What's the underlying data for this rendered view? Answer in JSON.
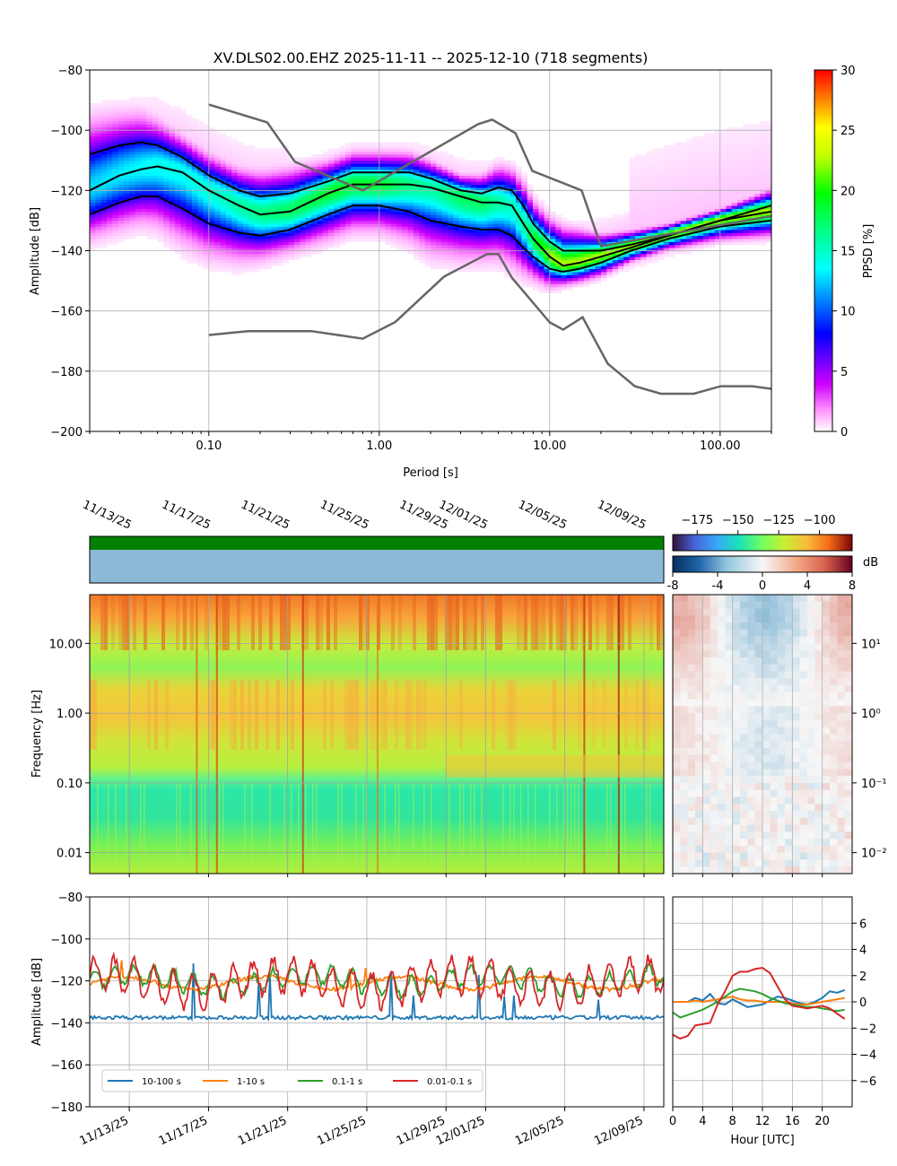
{
  "chart_data": [
    {
      "type": "heatmap",
      "panel": "ppsd",
      "title": "XV.DLS02.00.EHZ   2025-11-11 -- 2025-12-10  (718 segments)",
      "xlabel": "Period [s]",
      "ylabel": "Amplitude [dB]",
      "xscale": "log",
      "xlim": [
        0.02,
        200
      ],
      "ylim": [
        -200,
        -80
      ],
      "xticks": [
        0.1,
        1,
        10,
        100
      ],
      "xtick_labels": [
        "0.10",
        "1.00",
        "10.00",
        "100.00"
      ],
      "yticks": [
        -200,
        -180,
        -160,
        -140,
        -120,
        -100,
        -80
      ],
      "ytick_labels": [
        "−200",
        "−180",
        "−160",
        "−140",
        "−120",
        "−100",
        "−80"
      ],
      "grid": true,
      "colorbar": {
        "label": "PPSD [%]",
        "min": 0,
        "max": 30,
        "ticks": [
          "0",
          "5",
          "10",
          "15",
          "20",
          "25",
          "30"
        ]
      },
      "percentile_curves": [
        {
          "name": "upper",
          "x": [
            0.02,
            0.03,
            0.04,
            0.05,
            0.07,
            0.1,
            0.15,
            0.2,
            0.3,
            0.5,
            0.7,
            1.0,
            1.5,
            2.0,
            3.0,
            4.0,
            5.0,
            6.0,
            7.0,
            8.0,
            10.0,
            12.0,
            15.0,
            20.0,
            30.0,
            50.0,
            100.0,
            200.0
          ],
          "y": [
            -108,
            -105,
            -104,
            -105,
            -109,
            -115,
            -120,
            -122,
            -121,
            -117,
            -114,
            -114,
            -114,
            -116,
            -120,
            -121,
            -119,
            -120,
            -125,
            -131,
            -137,
            -140,
            -140,
            -140,
            -138,
            -135,
            -130,
            -125
          ]
        },
        {
          "name": "median",
          "x": [
            0.02,
            0.03,
            0.04,
            0.05,
            0.07,
            0.1,
            0.15,
            0.2,
            0.3,
            0.5,
            0.7,
            1.0,
            1.5,
            2.0,
            3.0,
            4.0,
            5.0,
            6.0,
            7.0,
            8.0,
            10.0,
            12.0,
            15.0,
            20.0,
            30.0,
            50.0,
            100.0,
            200.0
          ],
          "y": [
            -120,
            -115,
            -113,
            -112,
            -114,
            -120,
            -125,
            -128,
            -127,
            -121,
            -118,
            -118,
            -118,
            -119,
            -122,
            -124,
            -124,
            -125,
            -131,
            -136,
            -142,
            -145,
            -144,
            -142,
            -139,
            -135,
            -130,
            -127
          ]
        },
        {
          "name": "lower",
          "x": [
            0.02,
            0.03,
            0.04,
            0.05,
            0.07,
            0.1,
            0.15,
            0.2,
            0.3,
            0.5,
            0.7,
            1.0,
            1.5,
            2.0,
            3.0,
            4.0,
            5.0,
            6.0,
            7.0,
            8.0,
            10.0,
            12.0,
            15.0,
            20.0,
            30.0,
            50.0,
            100.0,
            200.0
          ],
          "y": [
            -128,
            -124,
            -122,
            -122,
            -126,
            -131,
            -134,
            -135,
            -133,
            -128,
            -125,
            -125,
            -127,
            -130,
            -132,
            -133,
            -133,
            -135,
            -139,
            -142,
            -146,
            -147,
            -146,
            -144,
            -140,
            -136,
            -132,
            -130
          ]
        }
      ],
      "noise_models": [
        {
          "name": "NHNM",
          "x": [
            0.1,
            0.22,
            0.32,
            0.8,
            3.8,
            4.6,
            6.3,
            7.9,
            15.4,
            20.0,
            354.8
          ],
          "y": [
            -91.5,
            -97.4,
            -110.5,
            -120.0,
            -98.0,
            -96.5,
            -101.0,
            -113.5,
            -120.0,
            -138.5,
            -126.0
          ]
        },
        {
          "name": "NLNM",
          "x": [
            0.1,
            0.17,
            0.4,
            0.8,
            1.24,
            2.4,
            4.3,
            5.0,
            6.0,
            10.0,
            12.0,
            15.6,
            21.9,
            31.6,
            45.0,
            70.0,
            101.0,
            154.0,
            328.0
          ],
          "y": [
            -168.0,
            -166.7,
            -166.7,
            -169.2,
            -163.7,
            -148.6,
            -141.1,
            -141.1,
            -149.0,
            -163.8,
            -166.2,
            -162.1,
            -177.5,
            -185.0,
            -187.5,
            -187.5,
            -185.0,
            -185.0,
            -187.5
          ]
        }
      ]
    },
    {
      "type": "heatmap",
      "panel": "spectrogram",
      "ylabel": "Frequency [Hz]",
      "yscale": "log",
      "ylim": [
        0.005,
        50
      ],
      "yticks": [
        0.01,
        0.1,
        1,
        10
      ],
      "ytick_labels": [
        "0.01",
        "0.10",
        "1.00",
        "10.00"
      ],
      "xlim": [
        "2025-11-11",
        "2025-12-10"
      ],
      "date_ticks": [
        "11/13/25",
        "11/17/25",
        "11/21/25",
        "11/25/25",
        "11/29/25",
        "12/01/25",
        "12/05/25",
        "12/09/25"
      ],
      "colorbar": {
        "label": "",
        "min": -190,
        "max": -80,
        "ticks": [
          "−175",
          "−150",
          "−125",
          "−100"
        ]
      }
    },
    {
      "type": "heatmap",
      "panel": "diurnal-anomaly",
      "xlim": [
        0,
        24
      ],
      "ylim": [
        0.005,
        50
      ],
      "yticks": [
        0.01,
        0.1,
        1,
        10
      ],
      "ytick_labels": [
        "10⁻²",
        "10⁻¹",
        "10⁰",
        "10¹"
      ],
      "colorbar": {
        "label": "dB",
        "min": -8,
        "max": 8,
        "ticks": [
          "-8",
          "-4",
          "0",
          "4",
          "8"
        ]
      }
    },
    {
      "type": "line",
      "panel": "band-timeseries",
      "ylabel": "Amplitude [dB]",
      "ylim": [
        -180,
        -80
      ],
      "yticks": [
        -180,
        -160,
        -140,
        -120,
        -100,
        -80
      ],
      "ytick_labels": [
        "−180",
        "−160",
        "−140",
        "−120",
        "−100",
        "−80"
      ],
      "xlim": [
        "2025-11-11",
        "2025-12-10"
      ],
      "date_ticks": [
        "11/13/25",
        "11/17/25",
        "11/21/25",
        "11/25/25",
        "11/29/25",
        "12/01/25",
        "12/05/25",
        "12/09/25"
      ],
      "legend": "lower-left",
      "series": [
        {
          "name": "10-100 s",
          "color": "#1f77b4",
          "mean": -137.5,
          "spread": 1.2
        },
        {
          "name": "1-10 s",
          "color": "#ff7f0e",
          "mean": -121,
          "spread": 3
        },
        {
          "name": "0.1-1 s",
          "color": "#2ca02c",
          "mean": -120,
          "spread": 5
        },
        {
          "name": "0.01-0.1 s",
          "color": "#d62728",
          "mean": -121,
          "spread": 8
        }
      ]
    },
    {
      "type": "line",
      "panel": "diurnal-bands",
      "xlabel": "Hour [UTC]",
      "xlim": [
        0,
        24
      ],
      "xticks": [
        0,
        4,
        8,
        12,
        16,
        20
      ],
      "xtick_labels": [
        "0",
        "4",
        "8",
        "12",
        "16",
        "20"
      ],
      "ylim": [
        -8,
        8
      ],
      "yticks": [
        -6,
        -4,
        -2,
        0,
        2,
        4,
        6
      ],
      "ytick_labels": [
        "−6",
        "−4",
        "−2",
        "0",
        "2",
        "4",
        "6"
      ],
      "x": [
        0,
        1,
        2,
        3,
        4,
        5,
        6,
        7,
        8,
        9,
        10,
        11,
        12,
        13,
        14,
        15,
        16,
        17,
        18,
        19,
        20,
        21,
        22,
        23
      ],
      "series": [
        {
          "name": "10-100 s",
          "color": "#1f77b4",
          "values": [
            0,
            0,
            0,
            0.3,
            0.1,
            0.6,
            -0.1,
            -0.2,
            0.2,
            -0.1,
            -0.4,
            -0.3,
            -0.2,
            0.1,
            0.4,
            0.3,
            0.1,
            -0.1,
            -0.2,
            0,
            0.3,
            0.8,
            0.7,
            0.9
          ]
        },
        {
          "name": "1-10 s",
          "color": "#ff7f0e",
          "values": [
            0,
            0,
            0,
            0.1,
            0,
            0.1,
            0.2,
            0.3,
            0.4,
            0.2,
            0.1,
            0.1,
            0,
            0,
            0,
            0,
            -0.1,
            -0.2,
            -0.2,
            -0.1,
            0,
            0.1,
            0.2,
            0.3
          ]
        },
        {
          "name": "0.1-1 s",
          "color": "#2ca02c",
          "values": [
            -0.8,
            -1.2,
            -1.0,
            -0.8,
            -0.6,
            -0.3,
            0,
            0.4,
            0.8,
            1.0,
            0.9,
            0.8,
            0.6,
            0.3,
            0.1,
            -0.1,
            -0.2,
            -0.3,
            -0.4,
            -0.4,
            -0.5,
            -0.6,
            -0.7,
            -0.6
          ]
        },
        {
          "name": "0.01-0.1 s",
          "color": "#d62728",
          "values": [
            -2.5,
            -2.8,
            -2.6,
            -1.8,
            -1.7,
            -1.6,
            -0.2,
            0.8,
            2.0,
            2.3,
            2.3,
            2.5,
            2.6,
            2.2,
            1.2,
            0.2,
            -0.3,
            -0.4,
            -0.5,
            -0.4,
            -0.3,
            -0.5,
            -0.9,
            -1.3
          ]
        }
      ]
    }
  ]
}
